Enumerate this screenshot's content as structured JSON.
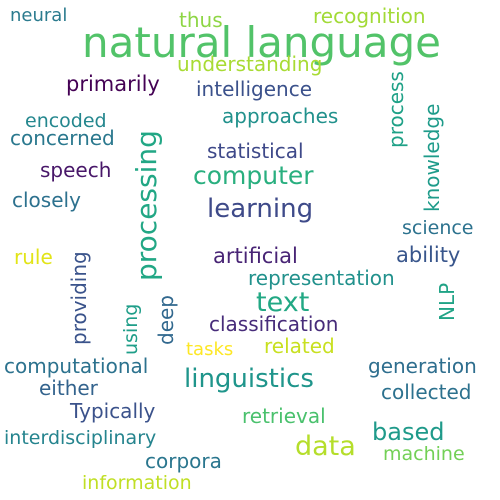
{
  "words": [
    {
      "id": "natural-language",
      "text": "natural language",
      "color": "#52c369"
    },
    {
      "id": "neural",
      "text": "neural",
      "color": "#2b7b8e"
    },
    {
      "id": "thus",
      "text": "thus",
      "color": "#8ed645"
    },
    {
      "id": "recognition",
      "text": "recognition",
      "color": "#a2da37"
    },
    {
      "id": "understanding",
      "text": "understanding",
      "color": "#a8db34"
    },
    {
      "id": "primarily",
      "text": "primarily",
      "color": "#440154"
    },
    {
      "id": "intelligence",
      "text": "intelligence",
      "color": "#3b518b"
    },
    {
      "id": "process",
      "text": "process",
      "color": "#1fa187"
    },
    {
      "id": "knowledge",
      "text": "knowledge",
      "color": "#1e9b8a"
    },
    {
      "id": "encoded",
      "text": "encoded",
      "color": "#24878e"
    },
    {
      "id": "approaches",
      "text": "approaches",
      "color": "#21918c"
    },
    {
      "id": "concerned",
      "text": "concerned",
      "color": "#2a788e"
    },
    {
      "id": "processing",
      "text": "processing",
      "color": "#22a785"
    },
    {
      "id": "statistical",
      "text": "statistical",
      "color": "#3e4989"
    },
    {
      "id": "speech",
      "text": "speech",
      "color": "#481769"
    },
    {
      "id": "computer",
      "text": "computer",
      "color": "#29af7f"
    },
    {
      "id": "closely",
      "text": "closely",
      "color": "#2d718e"
    },
    {
      "id": "learning",
      "text": "learning",
      "color": "#3e4a89"
    },
    {
      "id": "science",
      "text": "science",
      "color": "#2c728e"
    },
    {
      "id": "rule",
      "text": "rule",
      "color": "#e2e418"
    },
    {
      "id": "providing",
      "text": "providing",
      "color": "#3a538b"
    },
    {
      "id": "artificial",
      "text": "artificial",
      "color": "#482475"
    },
    {
      "id": "ability",
      "text": "ability",
      "color": "#39568c"
    },
    {
      "id": "representation",
      "text": "representation",
      "color": "#21918c"
    },
    {
      "id": "using",
      "text": "using",
      "color": "#1f9e89"
    },
    {
      "id": "deep",
      "text": "deep",
      "color": "#31688e"
    },
    {
      "id": "text",
      "text": "text",
      "color": "#22a884"
    },
    {
      "id": "nlp",
      "text": "NLP",
      "color": "#20a386"
    },
    {
      "id": "classification",
      "text": "classification",
      "color": "#472c7a"
    },
    {
      "id": "tasks",
      "text": "tasks",
      "color": "#fde725"
    },
    {
      "id": "related",
      "text": "related",
      "color": "#c8e020"
    },
    {
      "id": "computational",
      "text": "computational",
      "color": "#2c728e"
    },
    {
      "id": "linguistics",
      "text": "linguistics",
      "color": "#1f958b"
    },
    {
      "id": "generation",
      "text": "generation",
      "color": "#2e6e8e"
    },
    {
      "id": "either",
      "text": "either",
      "color": "#33638d"
    },
    {
      "id": "collected",
      "text": "collected",
      "color": "#2c718e"
    },
    {
      "id": "typically",
      "text": "Typically",
      "color": "#3b528b"
    },
    {
      "id": "retrieval",
      "text": "retrieval",
      "color": "#4ac16d"
    },
    {
      "id": "based",
      "text": "based",
      "color": "#1f9a8a"
    },
    {
      "id": "interdisciplinary",
      "text": "interdisciplinary",
      "color": "#25848e"
    },
    {
      "id": "corpora",
      "text": "corpora",
      "color": "#2a768e"
    },
    {
      "id": "machine",
      "text": "machine",
      "color": "#73d056"
    },
    {
      "id": "data",
      "text": "data",
      "color": "#b5de2b"
    },
    {
      "id": "information",
      "text": "information",
      "color": "#c0df25"
    }
  ]
}
